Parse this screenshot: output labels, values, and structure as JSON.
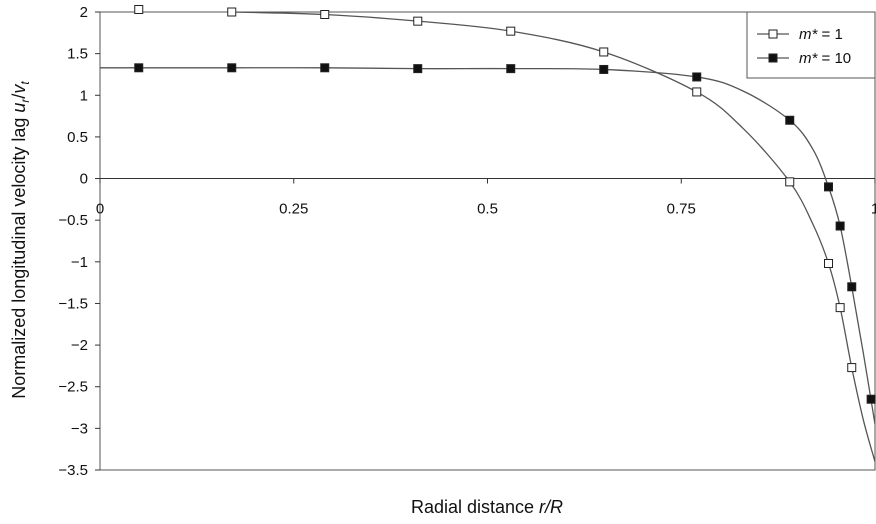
{
  "chart_data": {
    "type": "line",
    "xlabel": {
      "main": "Radial distance ",
      "italic": "r/R"
    },
    "ylabel": {
      "main": "Normalized longitudinal velocity lag ",
      "italic": "u",
      "sub": "r",
      "slash": "/",
      "italic2": "v",
      "sub2": "t"
    },
    "xlim": [
      0,
      1
    ],
    "ylim": [
      -3.5,
      2
    ],
    "x_ticks": [
      "0",
      "0.25",
      "0.5",
      "0.75",
      "1"
    ],
    "y_ticks": [
      "2",
      "1.5",
      "1",
      "0.5",
      "0",
      "-0.5",
      "-1",
      "-1.5",
      "-2",
      "-2.5",
      "-3",
      "-3.5"
    ],
    "grid": false,
    "legend_position": "top-right",
    "series": [
      {
        "name": "m* = 1",
        "legend": {
          "italic": "m*",
          "rest": " = 1"
        },
        "marker": "open-square",
        "color": "#222222",
        "x": [
          0.05,
          0.17,
          0.29,
          0.41,
          0.53,
          0.65,
          0.77,
          0.89,
          0.94,
          0.955,
          0.97
        ],
        "y": [
          2.03,
          2.0,
          1.97,
          1.89,
          1.77,
          1.52,
          1.04,
          -0.04,
          -1.02,
          -1.55,
          -2.27
        ],
        "curve": {
          "x": [
            0.0,
            0.05,
            0.17,
            0.29,
            0.41,
            0.53,
            0.65,
            0.77,
            0.83,
            0.89,
            0.92,
            0.94,
            0.955,
            0.97,
            0.985,
            1.0
          ],
          "y": [
            2.03,
            2.03,
            2.0,
            1.97,
            1.89,
            1.77,
            1.52,
            1.04,
            0.6,
            -0.04,
            -0.55,
            -1.02,
            -1.55,
            -2.27,
            -2.9,
            -3.4
          ]
        }
      },
      {
        "name": "m* = 10",
        "legend": {
          "italic": "m*",
          "rest": " = 10"
        },
        "marker": "filled-square",
        "color": "#222222",
        "x": [
          0.05,
          0.17,
          0.29,
          0.41,
          0.53,
          0.65,
          0.77,
          0.89,
          0.94,
          0.955,
          0.97,
          0.995
        ],
        "y": [
          1.33,
          1.33,
          1.33,
          1.32,
          1.32,
          1.31,
          1.22,
          0.7,
          -0.1,
          -0.57,
          -1.3,
          -2.65
        ],
        "curve": {
          "x": [
            0.0,
            0.05,
            0.17,
            0.29,
            0.41,
            0.53,
            0.65,
            0.77,
            0.83,
            0.89,
            0.92,
            0.94,
            0.955,
            0.97,
            0.985,
            1.0
          ],
          "y": [
            1.33,
            1.33,
            1.33,
            1.33,
            1.32,
            1.32,
            1.31,
            1.22,
            1.05,
            0.7,
            0.35,
            -0.1,
            -0.57,
            -1.3,
            -2.1,
            -2.95
          ]
        }
      }
    ]
  }
}
